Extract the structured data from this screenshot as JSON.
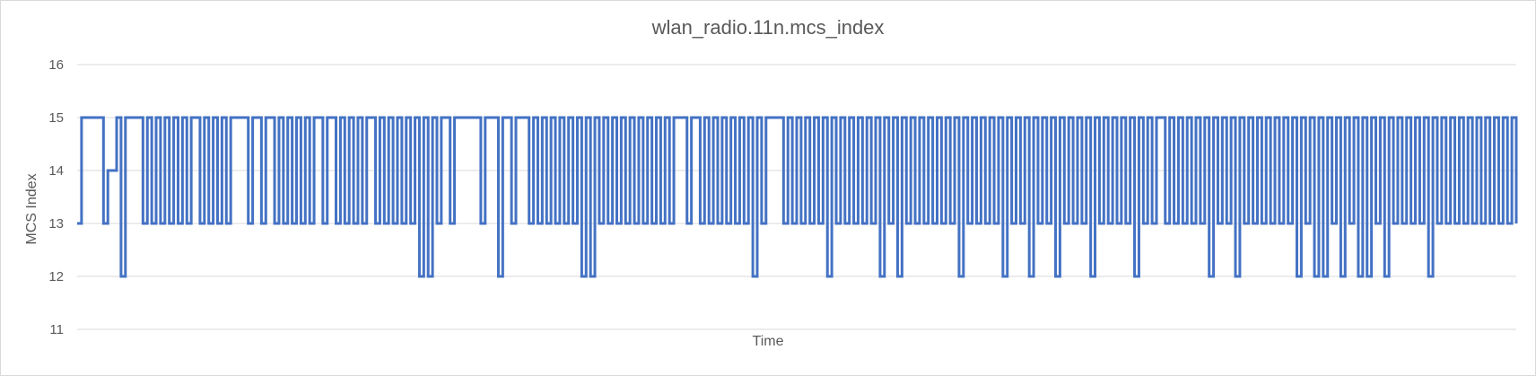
{
  "chart_data": {
    "type": "line",
    "title": "wlan_radio.11n.mcs_index",
    "xlabel": "Time",
    "ylabel": "MCS Index",
    "ylim": [
      11,
      16
    ],
    "yticks": [
      "11",
      "12",
      "13",
      "14",
      "15",
      "16"
    ],
    "grid": true,
    "legend": "none",
    "series": [
      {
        "color": "#4472C4",
        "values": [
          13,
          15,
          15,
          15,
          15,
          15,
          13,
          14,
          14,
          15,
          12,
          15,
          15,
          15,
          15,
          13,
          15,
          13,
          15,
          13,
          15,
          13,
          15,
          13,
          15,
          13,
          15,
          15,
          13,
          15,
          13,
          15,
          13,
          15,
          13,
          15,
          15,
          15,
          15,
          13,
          15,
          15,
          13,
          15,
          15,
          13,
          15,
          13,
          15,
          13,
          15,
          13,
          15,
          13,
          15,
          15,
          13,
          15,
          15,
          13,
          15,
          13,
          15,
          13,
          15,
          13,
          15,
          15,
          13,
          15,
          13,
          15,
          13,
          15,
          13,
          15,
          13,
          15,
          12,
          15,
          12,
          15,
          13,
          15,
          15,
          13,
          15,
          15,
          15,
          15,
          15,
          15,
          13,
          15,
          15,
          15,
          12,
          15,
          15,
          13,
          15,
          15,
          15,
          13,
          15,
          13,
          15,
          13,
          15,
          13,
          15,
          13,
          15,
          13,
          15,
          12,
          15,
          12,
          15,
          13,
          15,
          13,
          15,
          13,
          15,
          13,
          15,
          13,
          15,
          13,
          15,
          13,
          15,
          13,
          15,
          13,
          15,
          15,
          15,
          13,
          15,
          15,
          13,
          15,
          13,
          15,
          13,
          15,
          13,
          15,
          13,
          15,
          13,
          15,
          12,
          15,
          13,
          15,
          15,
          15,
          15,
          13,
          15,
          13,
          15,
          13,
          15,
          13,
          15,
          13,
          15,
          12,
          15,
          13,
          15,
          13,
          15,
          13,
          15,
          13,
          15,
          13,
          15,
          12,
          15,
          13,
          15,
          12,
          15,
          13,
          15,
          13,
          15,
          13,
          15,
          13,
          15,
          13,
          15,
          13,
          15,
          12,
          15,
          13,
          15,
          13,
          15,
          13,
          15,
          13,
          15,
          12,
          15,
          13,
          15,
          13,
          15,
          12,
          15,
          13,
          15,
          13,
          15,
          12,
          15,
          13,
          15,
          13,
          15,
          13,
          15,
          12,
          15,
          13,
          15,
          13,
          15,
          13,
          15,
          13,
          15,
          12,
          15,
          13,
          15,
          13,
          15,
          15,
          13,
          15,
          13,
          15,
          13,
          15,
          13,
          15,
          13,
          15,
          12,
          15,
          13,
          15,
          13,
          15,
          12,
          15,
          13,
          15,
          13,
          15,
          13,
          15,
          13,
          15,
          13,
          15,
          13,
          15,
          12,
          15,
          13,
          15,
          12,
          15,
          12,
          15,
          13,
          15,
          12,
          15,
          13,
          15,
          12,
          15,
          12,
          15,
          13,
          15,
          12,
          15,
          13,
          15,
          13,
          15,
          13,
          15,
          13,
          15,
          12,
          15,
          13,
          15,
          13,
          15,
          13,
          15,
          13,
          15,
          13,
          15,
          13,
          15,
          13,
          15,
          13,
          15,
          13,
          15,
          13
        ]
      }
    ]
  }
}
